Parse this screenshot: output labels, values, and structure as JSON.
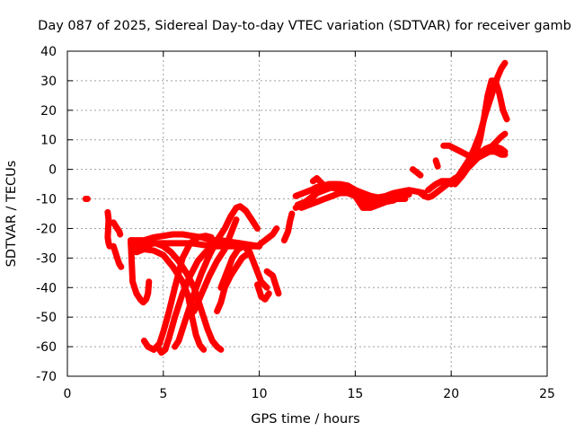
{
  "chart_data": {
    "type": "scatter",
    "title": "Day 087 of 2025, Sidereal Day-to-day VTEC variation (SDTVAR) for receiver gamb",
    "xlabel": "GPS time / hours",
    "ylabel": "SDTVAR / TECUs",
    "xlim": [
      0,
      25
    ],
    "ylim": [
      -70,
      40
    ],
    "xticks": [
      0,
      5,
      10,
      15,
      20,
      25
    ],
    "yticks": [
      -70,
      -60,
      -50,
      -40,
      -30,
      -20,
      -10,
      0,
      10,
      20,
      30,
      40
    ],
    "grid": true,
    "legend": "none",
    "marker": "+",
    "color": "#ff0000",
    "series": [
      {
        "values": [
          [
            0.95,
            -10
          ],
          [
            1.05,
            -10
          ]
        ]
      },
      {
        "values": [
          [
            2.1,
            -14.5
          ],
          [
            2.15,
            -17
          ],
          [
            2.1,
            -23
          ],
          [
            2.15,
            -25
          ],
          [
            2.2,
            -26
          ]
        ]
      },
      {
        "values": [
          [
            2.4,
            -18
          ],
          [
            2.5,
            -19
          ],
          [
            2.6,
            -20
          ],
          [
            2.7,
            -21
          ],
          [
            2.75,
            -22
          ]
        ]
      },
      {
        "values": [
          [
            2.4,
            -26
          ],
          [
            2.5,
            -28
          ],
          [
            2.6,
            -30
          ],
          [
            2.7,
            -32
          ],
          [
            2.8,
            -33
          ]
        ]
      },
      {
        "values": [
          [
            3.3,
            -24
          ],
          [
            3.4,
            -38
          ],
          [
            3.6,
            -42
          ],
          [
            3.8,
            -44
          ],
          [
            3.95,
            -45
          ],
          [
            4.1,
            -44
          ],
          [
            4.2,
            -42
          ],
          [
            4.25,
            -38
          ]
        ]
      },
      {
        "values": [
          [
            3.3,
            -25
          ],
          [
            3.6,
            -26
          ],
          [
            4.0,
            -26
          ],
          [
            4.5,
            -25
          ],
          [
            5.0,
            -25
          ],
          [
            5.5,
            -25
          ],
          [
            6.0,
            -25
          ],
          [
            6.5,
            -25
          ],
          [
            7.0,
            -25.5
          ],
          [
            7.5,
            -26
          ],
          [
            8.0,
            -26
          ],
          [
            8.5,
            -26
          ],
          [
            9.0,
            -26
          ],
          [
            9.5,
            -26
          ],
          [
            10.0,
            -26
          ]
        ]
      },
      {
        "values": [
          [
            3.3,
            -24
          ],
          [
            3.6,
            -24
          ],
          [
            4.0,
            -24
          ],
          [
            4.5,
            -23
          ],
          [
            5.0,
            -22.5
          ],
          [
            5.5,
            -22
          ],
          [
            6.0,
            -22
          ],
          [
            6.5,
            -22.5
          ],
          [
            7.0,
            -23
          ],
          [
            7.5,
            -24
          ],
          [
            8.0,
            -24
          ],
          [
            8.5,
            -24.5
          ],
          [
            9.0,
            -25
          ],
          [
            9.5,
            -25.5
          ],
          [
            10.0,
            -26
          ]
        ]
      },
      {
        "values": [
          [
            3.4,
            -27
          ],
          [
            3.8,
            -26
          ],
          [
            4.2,
            -25
          ],
          [
            4.6,
            -25
          ],
          [
            5.0,
            -26
          ],
          [
            5.4,
            -28
          ],
          [
            5.8,
            -31
          ],
          [
            6.2,
            -35
          ],
          [
            6.6,
            -40
          ],
          [
            7.0,
            -48
          ],
          [
            7.3,
            -54
          ],
          [
            7.55,
            -58
          ],
          [
            7.8,
            -60
          ],
          [
            8.0,
            -61
          ]
        ]
      },
      {
        "values": [
          [
            3.6,
            -28
          ],
          [
            4.0,
            -27
          ],
          [
            4.5,
            -27.5
          ],
          [
            5.0,
            -29
          ],
          [
            5.5,
            -33
          ],
          [
            6.0,
            -38
          ],
          [
            6.3,
            -43
          ],
          [
            6.5,
            -50
          ],
          [
            6.7,
            -56
          ],
          [
            6.9,
            -59.5
          ],
          [
            7.1,
            -61
          ]
        ]
      },
      {
        "values": [
          [
            4.0,
            -58
          ],
          [
            4.2,
            -60
          ],
          [
            4.5,
            -61
          ],
          [
            4.8,
            -59
          ],
          [
            5.0,
            -55
          ],
          [
            5.3,
            -48
          ],
          [
            5.6,
            -40
          ],
          [
            6.0,
            -30
          ],
          [
            6.4,
            -25
          ],
          [
            6.8,
            -23
          ],
          [
            7.2,
            -22.5
          ],
          [
            7.5,
            -23
          ]
        ]
      },
      {
        "values": [
          [
            4.7,
            -60
          ],
          [
            4.9,
            -62
          ],
          [
            5.1,
            -61
          ],
          [
            5.3,
            -57
          ],
          [
            5.6,
            -50
          ],
          [
            6.0,
            -42
          ],
          [
            6.4,
            -36
          ],
          [
            6.8,
            -31
          ],
          [
            7.2,
            -28
          ],
          [
            7.6,
            -26
          ],
          [
            8.0,
            -25.5
          ],
          [
            8.5,
            -25
          ],
          [
            9.0,
            -25
          ]
        ]
      },
      {
        "values": [
          [
            5.6,
            -60
          ],
          [
            5.8,
            -58
          ],
          [
            6.2,
            -50
          ],
          [
            6.6,
            -42
          ],
          [
            7.0,
            -35
          ],
          [
            7.4,
            -29
          ],
          [
            7.8,
            -24
          ],
          [
            8.2,
            -20
          ],
          [
            8.5,
            -16
          ],
          [
            8.8,
            -13
          ],
          [
            9.0,
            -12.5
          ],
          [
            9.3,
            -14
          ],
          [
            9.6,
            -17
          ],
          [
            9.9,
            -20
          ]
        ]
      },
      {
        "values": [
          [
            6.6,
            -48
          ],
          [
            7.0,
            -42
          ],
          [
            7.4,
            -36
          ],
          [
            7.8,
            -31
          ],
          [
            8.2,
            -27
          ],
          [
            8.5,
            -22
          ],
          [
            8.8,
            -17
          ]
        ]
      },
      {
        "values": [
          [
            7.8,
            -48
          ],
          [
            8.0,
            -45
          ],
          [
            8.2,
            -40
          ],
          [
            8.5,
            -36
          ],
          [
            8.8,
            -33
          ],
          [
            9.1,
            -30
          ],
          [
            9.5,
            -28
          ]
        ]
      },
      {
        "values": [
          [
            8.0,
            -40
          ],
          [
            8.3,
            -35
          ],
          [
            8.6,
            -30
          ],
          [
            8.9,
            -27
          ],
          [
            9.2,
            -26
          ],
          [
            9.5,
            -28
          ],
          [
            9.8,
            -33
          ],
          [
            10.1,
            -38
          ],
          [
            10.4,
            -40
          ]
        ]
      },
      {
        "values": [
          [
            9.9,
            -39
          ],
          [
            10.1,
            -43
          ],
          [
            10.3,
            -44
          ],
          [
            10.5,
            -42
          ]
        ]
      },
      {
        "values": [
          [
            10.4,
            -34.5
          ],
          [
            10.7,
            -36
          ],
          [
            10.9,
            -40
          ],
          [
            11.0,
            -42
          ]
        ]
      },
      {
        "values": [
          [
            9.9,
            -26
          ],
          [
            10.1,
            -25
          ],
          [
            10.3,
            -24
          ],
          [
            10.5,
            -23
          ],
          [
            10.7,
            -22
          ],
          [
            10.9,
            -20
          ]
        ]
      },
      {
        "values": [
          [
            11.3,
            -24
          ],
          [
            11.5,
            -21
          ],
          [
            11.6,
            -17.5
          ],
          [
            11.7,
            -15
          ]
        ]
      },
      {
        "values": [
          [
            11.9,
            -9
          ],
          [
            12.3,
            -8
          ],
          [
            12.7,
            -7
          ],
          [
            13.0,
            -6
          ],
          [
            13.4,
            -5.5
          ],
          [
            13.8,
            -5
          ],
          [
            14.2,
            -5
          ],
          [
            14.6,
            -5.5
          ],
          [
            15.0,
            -7
          ],
          [
            15.4,
            -8
          ],
          [
            15.8,
            -9
          ],
          [
            16.2,
            -9.5
          ],
          [
            16.6,
            -9
          ],
          [
            17.0,
            -8
          ],
          [
            17.4,
            -7.5
          ],
          [
            17.8,
            -7
          ],
          [
            18.2,
            -7.5
          ],
          [
            18.6,
            -8
          ]
        ]
      },
      {
        "values": [
          [
            11.9,
            -13
          ],
          [
            12.3,
            -12
          ],
          [
            12.7,
            -10
          ],
          [
            13.0,
            -8
          ],
          [
            13.4,
            -7
          ],
          [
            13.8,
            -6
          ],
          [
            14.2,
            -6
          ],
          [
            14.6,
            -7
          ],
          [
            15.0,
            -8
          ],
          [
            15.4,
            -10
          ],
          [
            15.8,
            -11
          ],
          [
            16.2,
            -10.5
          ],
          [
            16.6,
            -10
          ],
          [
            17.0,
            -9
          ],
          [
            17.4,
            -9
          ],
          [
            17.8,
            -8.5
          ]
        ]
      },
      {
        "values": [
          [
            12.0,
            -12
          ],
          [
            12.4,
            -11
          ],
          [
            12.8,
            -9
          ],
          [
            13.2,
            -6
          ],
          [
            13.6,
            -5
          ],
          [
            14.0,
            -5
          ],
          [
            14.4,
            -5.5
          ],
          [
            14.8,
            -7
          ],
          [
            15.2,
            -10
          ],
          [
            15.6,
            -12
          ],
          [
            16.0,
            -12
          ],
          [
            16.4,
            -11
          ],
          [
            16.8,
            -10.5
          ],
          [
            17.2,
            -10
          ],
          [
            17.6,
            -10
          ]
        ]
      },
      {
        "values": [
          [
            12.2,
            -13
          ],
          [
            12.6,
            -12
          ],
          [
            13.0,
            -11
          ],
          [
            13.4,
            -10
          ],
          [
            13.8,
            -9
          ],
          [
            14.2,
            -8
          ],
          [
            14.6,
            -8
          ],
          [
            15.0,
            -9
          ],
          [
            15.4,
            -13
          ],
          [
            15.8,
            -13
          ],
          [
            16.2,
            -12
          ],
          [
            16.6,
            -11
          ],
          [
            17.0,
            -10.5
          ]
        ]
      },
      {
        "values": [
          [
            12.8,
            -4
          ],
          [
            13.0,
            -3
          ],
          [
            13.3,
            -5
          ],
          [
            13.6,
            -6
          ],
          [
            14.0,
            -6.5
          ],
          [
            14.4,
            -6
          ]
        ]
      },
      {
        "values": [
          [
            18.0,
            0
          ],
          [
            18.2,
            -1
          ],
          [
            18.4,
            -2
          ]
        ]
      },
      {
        "values": [
          [
            18.4,
            -8
          ],
          [
            18.6,
            -9
          ],
          [
            18.8,
            -9.5
          ],
          [
            19.0,
            -9
          ],
          [
            19.2,
            -8
          ],
          [
            19.4,
            -7
          ],
          [
            19.6,
            -6
          ],
          [
            19.8,
            -5
          ],
          [
            20.0,
            -4
          ],
          [
            20.2,
            -3
          ],
          [
            20.5,
            -2
          ],
          [
            20.8,
            0
          ],
          [
            21.1,
            2
          ],
          [
            21.4,
            4
          ],
          [
            21.7,
            5
          ],
          [
            22.0,
            6
          ],
          [
            22.3,
            6
          ],
          [
            22.6,
            5
          ],
          [
            22.8,
            5
          ]
        ]
      },
      {
        "values": [
          [
            18.8,
            -7
          ],
          [
            19.0,
            -6
          ],
          [
            19.2,
            -5
          ],
          [
            19.5,
            -4
          ],
          [
            19.8,
            -4
          ],
          [
            20.1,
            -4
          ],
          [
            20.4,
            -3
          ],
          [
            20.7,
            -1
          ],
          [
            21.0,
            2
          ],
          [
            21.3,
            6
          ],
          [
            21.5,
            10
          ],
          [
            21.7,
            17
          ],
          [
            21.9,
            25
          ],
          [
            22.1,
            30
          ],
          [
            22.3,
            30
          ],
          [
            22.5,
            26
          ],
          [
            22.7,
            20
          ],
          [
            22.9,
            17
          ]
        ]
      },
      {
        "values": [
          [
            19.6,
            8
          ],
          [
            19.9,
            8
          ],
          [
            20.2,
            7
          ],
          [
            20.5,
            6
          ],
          [
            20.8,
            5
          ],
          [
            21.1,
            4
          ],
          [
            21.4,
            4
          ],
          [
            21.7,
            5
          ],
          [
            22.0,
            7
          ],
          [
            22.3,
            9
          ],
          [
            22.6,
            11
          ],
          [
            22.8,
            12
          ]
        ]
      },
      {
        "values": [
          [
            20.0,
            -5
          ],
          [
            20.3,
            -3
          ],
          [
            20.6,
            0
          ],
          [
            20.9,
            3
          ],
          [
            21.2,
            7
          ],
          [
            21.5,
            12
          ],
          [
            21.8,
            19
          ],
          [
            22.0,
            23
          ],
          [
            22.2,
            27
          ],
          [
            22.4,
            31
          ],
          [
            22.6,
            34
          ],
          [
            22.8,
            36
          ]
        ]
      },
      {
        "values": [
          [
            20.2,
            -5
          ],
          [
            20.6,
            -2
          ],
          [
            21.0,
            2
          ],
          [
            21.4,
            5
          ],
          [
            21.8,
            7
          ],
          [
            22.2,
            8
          ],
          [
            22.6,
            7
          ],
          [
            22.8,
            6
          ]
        ]
      },
      {
        "values": [
          [
            19.2,
            3
          ],
          [
            19.3,
            1
          ]
        ]
      }
    ]
  }
}
